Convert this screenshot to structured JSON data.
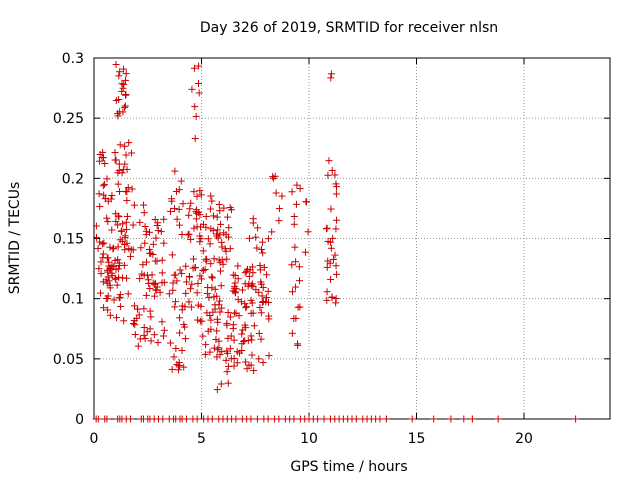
{
  "chart_data": {
    "type": "scatter",
    "title": "Day 326 of 2019, SRMTID for receiver nlsn",
    "xlabel": "GPS time / hours",
    "ylabel": "SRMTID / TECUs",
    "xlim": [
      0,
      24
    ],
    "ylim": [
      0,
      0.3
    ],
    "xticks": [
      "0",
      "5",
      "10",
      "15",
      "20"
    ],
    "yticks": [
      "0",
      "0.05",
      "0.1",
      "0.15",
      "0.2",
      "0.25",
      "0.3"
    ],
    "grid": true,
    "marker": "+",
    "colors": {
      "points": "#cc0000",
      "grid": "#999999",
      "axes": "#000000"
    },
    "clusters": [
      {
        "x": [
          0.1,
          0.9
        ],
        "y": [
          0.09,
          0.2
        ],
        "n": 45
      },
      {
        "x": [
          0.2,
          0.5
        ],
        "y": [
          0.2,
          0.225
        ],
        "n": 6
      },
      {
        "x": [
          0.9,
          1.8
        ],
        "y": [
          0.1,
          0.23
        ],
        "n": 55
      },
      {
        "x": [
          0.6,
          1.4
        ],
        "y": [
          0.08,
          0.13
        ],
        "n": 20
      },
      {
        "x": [
          1.0,
          1.6
        ],
        "y": [
          0.25,
          0.295
        ],
        "n": 20
      },
      {
        "x": [
          1.8,
          2.6
        ],
        "y": [
          0.06,
          0.18
        ],
        "n": 40
      },
      {
        "x": [
          2.6,
          3.3
        ],
        "y": [
          0.06,
          0.17
        ],
        "n": 35
      },
      {
        "x": [
          3.5,
          4.3
        ],
        "y": [
          0.04,
          0.21
        ],
        "n": 45
      },
      {
        "x": [
          4.3,
          5.0
        ],
        "y": [
          0.08,
          0.19
        ],
        "n": 40
      },
      {
        "x": [
          4.5,
          4.9
        ],
        "y": [
          0.22,
          0.3
        ],
        "n": 8
      },
      {
        "x": [
          5.0,
          5.8
        ],
        "y": [
          0.05,
          0.19
        ],
        "n": 55
      },
      {
        "x": [
          5.8,
          6.6
        ],
        "y": [
          0.05,
          0.19
        ],
        "n": 50
      },
      {
        "x": [
          5.6,
          6.3
        ],
        "y": [
          0.02,
          0.05
        ],
        "n": 6
      },
      {
        "x": [
          6.5,
          7.4
        ],
        "y": [
          0.04,
          0.13
        ],
        "n": 45
      },
      {
        "x": [
          7.2,
          8.2
        ],
        "y": [
          0.04,
          0.17
        ],
        "n": 45
      },
      {
        "x": [
          8.2,
          8.8
        ],
        "y": [
          0.15,
          0.21
        ],
        "n": 8
      },
      {
        "x": [
          9.2,
          9.6
        ],
        "y": [
          0.05,
          0.2
        ],
        "n": 20
      },
      {
        "x": [
          9.8,
          10.0
        ],
        "y": [
          0.13,
          0.2
        ],
        "n": 4
      },
      {
        "x": [
          10.8,
          11.3
        ],
        "y": [
          0.09,
          0.22
        ],
        "n": 30
      },
      {
        "x": [
          11.0,
          11.1
        ],
        "y": [
          0.26,
          0.295
        ],
        "n": 2
      }
    ],
    "zero_points_x": [
      0.1,
      0.2,
      0.5,
      0.6,
      1.1,
      1.2,
      1.3,
      1.5,
      1.7,
      2.2,
      2.3,
      2.5,
      2.6,
      2.8,
      3.0,
      3.2,
      3.5,
      3.7,
      3.8,
      4.0,
      4.1,
      4.3,
      4.6,
      4.8,
      5.1,
      5.3,
      5.5,
      5.8,
      6.0,
      6.2,
      6.4,
      6.6,
      6.9,
      7.1,
      7.3,
      7.6,
      7.9,
      8.1,
      8.4,
      8.6,
      8.9,
      9.1,
      9.3,
      9.6,
      9.8,
      10.0,
      10.2,
      10.4,
      10.7,
      11.0,
      11.2,
      11.4,
      11.6,
      11.8,
      12.0,
      12.2,
      12.5,
      12.7,
      12.9,
      13.1,
      13.3,
      13.6,
      14.8,
      15.8,
      16.6,
      17.2,
      17.6,
      18.8,
      22.4
    ]
  }
}
